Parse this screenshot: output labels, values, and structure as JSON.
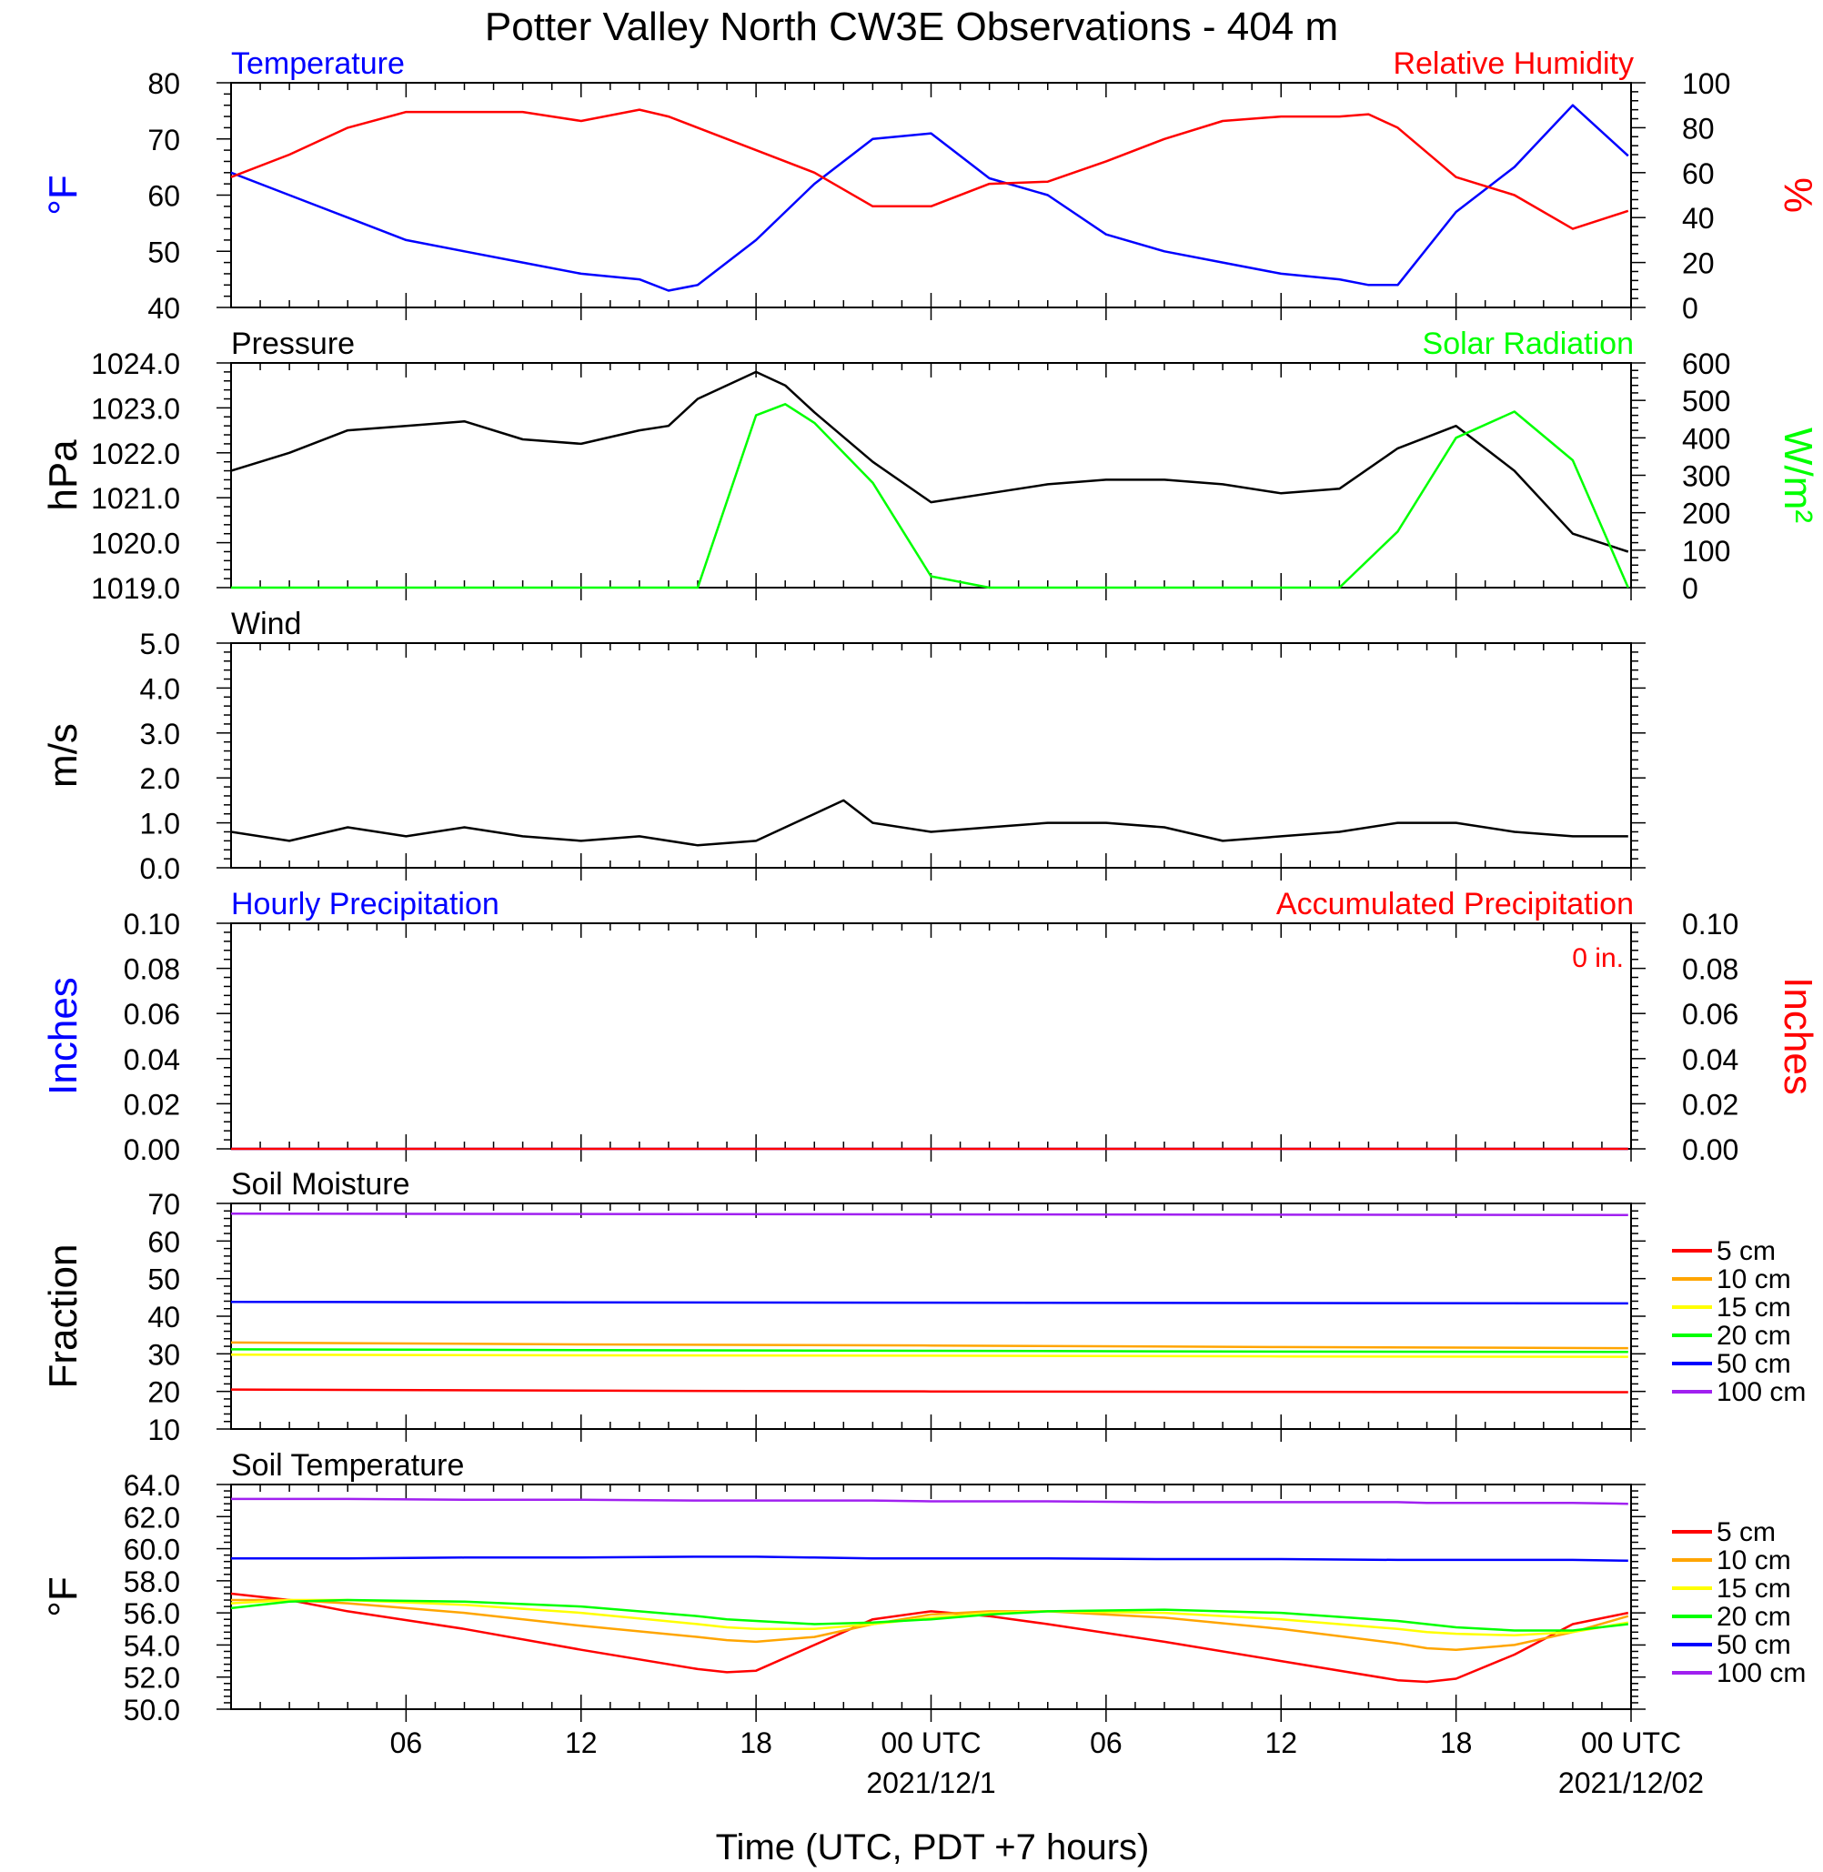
{
  "title": "Potter Valley North CW3E Observations - 404 m",
  "xlabel": "Time (UTC, PDT +7 hours)",
  "x_ticks": [
    "06",
    "12",
    "18",
    "00 UTC",
    "06",
    "12",
    "18",
    "00 UTC"
  ],
  "x_dates": [
    "2021/12/1",
    "2021/12/02"
  ],
  "colors": {
    "temperature": "#0000ff",
    "humidity": "#ff0000",
    "pressure": "#000000",
    "solar": "#00ff00",
    "wind": "#000000",
    "wind_barb": "#ff0000"
  },
  "chart_data": [
    {
      "type": "line",
      "title_left": "Temperature",
      "title_right": "Relative Humidity",
      "ylabel_left": "°F",
      "ylabel_right": "%",
      "ylim_left": [
        40,
        80
      ],
      "ylim_right": [
        0,
        100
      ],
      "yticks_left": [
        "80",
        "70",
        "60",
        "50",
        "40"
      ],
      "yticks_right": [
        "100",
        "80",
        "60",
        "40",
        "20",
        "0"
      ],
      "x_hours": [
        0,
        2,
        4,
        6,
        8,
        10,
        12,
        14,
        15,
        16,
        18,
        20,
        22,
        24,
        26,
        28,
        30,
        32,
        34,
        36,
        38,
        39,
        40,
        42,
        44,
        46,
        47.9
      ],
      "series": [
        {
          "name": "Temperature",
          "axis": "left",
          "values": [
            64,
            60,
            56,
            52,
            50,
            48,
            46,
            45,
            43,
            44,
            52,
            62,
            70,
            71,
            63,
            60,
            53,
            50,
            48,
            46,
            45,
            44,
            44,
            57,
            65,
            76,
            67
          ]
        },
        {
          "name": "Relative Humidity",
          "axis": "right",
          "values": [
            58,
            68,
            80,
            87,
            87,
            87,
            83,
            88,
            85,
            80,
            70,
            60,
            45,
            45,
            55,
            56,
            65,
            75,
            83,
            85,
            85,
            86,
            80,
            58,
            50,
            35,
            43
          ]
        }
      ]
    },
    {
      "type": "line",
      "title_left": "Pressure",
      "title_right": "Solar Radiation",
      "ylabel_left": "hPa",
      "ylabel_right": "W/m²",
      "ylim_left": [
        1019.0,
        1024.0
      ],
      "ylim_right": [
        0,
        600
      ],
      "yticks_left": [
        "1024.0",
        "1023.0",
        "1022.0",
        "1021.0",
        "1020.0",
        "1019.0"
      ],
      "yticks_right": [
        "600",
        "500",
        "400",
        "300",
        "200",
        "100",
        "0"
      ],
      "x_hours": [
        0,
        2,
        4,
        6,
        8,
        10,
        12,
        14,
        15,
        16,
        18,
        19,
        20,
        22,
        24,
        26,
        28,
        30,
        32,
        34,
        36,
        38,
        40,
        42,
        44,
        46,
        47.9
      ],
      "series": [
        {
          "name": "Pressure",
          "axis": "left",
          "values": [
            1021.6,
            1022.0,
            1022.5,
            1022.6,
            1022.7,
            1022.3,
            1022.2,
            1022.5,
            1022.6,
            1023.2,
            1023.8,
            1023.5,
            1022.9,
            1021.8,
            1020.9,
            1021.1,
            1021.3,
            1021.4,
            1021.4,
            1021.3,
            1021.1,
            1021.2,
            1022.1,
            1022.6,
            1021.6,
            1020.2,
            1019.8
          ]
        },
        {
          "name": "Solar Radiation",
          "axis": "right",
          "values": [
            0,
            0,
            0,
            0,
            0,
            0,
            0,
            0,
            0,
            0,
            460,
            490,
            440,
            280,
            30,
            0,
            0,
            0,
            0,
            0,
            0,
            0,
            150,
            400,
            470,
            340,
            0
          ]
        }
      ]
    },
    {
      "type": "line",
      "title_left": "Wind",
      "ylabel_left": "m/s",
      "ylim_left": [
        0.0,
        5.0
      ],
      "yticks_left": [
        "5.0",
        "4.0",
        "3.0",
        "2.0",
        "1.0",
        "0.0"
      ],
      "x_hours": [
        0,
        2,
        4,
        6,
        8,
        10,
        12,
        14,
        16,
        18,
        20,
        21,
        22,
        24,
        26,
        28,
        30,
        32,
        34,
        36,
        38,
        40,
        42,
        44,
        46,
        47.9
      ],
      "series": [
        {
          "name": "Wind",
          "axis": "left",
          "values": [
            0.8,
            0.6,
            0.9,
            0.7,
            0.9,
            0.7,
            0.6,
            0.7,
            0.5,
            0.6,
            1.2,
            1.5,
            1.0,
            0.8,
            0.9,
            1.0,
            1.0,
            0.9,
            0.6,
            0.7,
            0.8,
            1.0,
            1.0,
            0.8,
            0.7,
            0.7
          ]
        }
      ]
    },
    {
      "type": "line",
      "title_left": "Hourly Precipitation",
      "title_right": "Accumulated Precipitation",
      "annotation": "0 in.",
      "ylabel_left": "Inches",
      "ylabel_right": "Inches",
      "ylim_left": [
        0.0,
        0.1
      ],
      "ylim_right": [
        0.0,
        0.1
      ],
      "yticks_left": [
        "0.10",
        "0.08",
        "0.06",
        "0.04",
        "0.02",
        "0.00"
      ],
      "yticks_right": [
        "0.10",
        "0.08",
        "0.06",
        "0.04",
        "0.02",
        "0.00"
      ],
      "x_hours": [
        0,
        47.9
      ],
      "series": [
        {
          "name": "Hourly Precipitation",
          "axis": "left",
          "values": [
            0,
            0
          ]
        },
        {
          "name": "Accumulated Precipitation",
          "axis": "right",
          "values": [
            0,
            0
          ]
        }
      ]
    },
    {
      "type": "line",
      "title_left": "Soil Moisture",
      "ylabel_left": "Fraction",
      "ylim_left": [
        10,
        70
      ],
      "yticks_left": [
        "70",
        "60",
        "50",
        "40",
        "30",
        "20",
        "10"
      ],
      "legend": "right",
      "x_hours": [
        0,
        12,
        24,
        36,
        47.9
      ],
      "series": [
        {
          "name": "5 cm",
          "color": "#ff0000",
          "values": [
            20.5,
            20.2,
            20.0,
            19.9,
            19.8
          ]
        },
        {
          "name": "10 cm",
          "color": "#ffa500",
          "values": [
            33.0,
            32.5,
            32.2,
            31.8,
            31.5
          ]
        },
        {
          "name": "15 cm",
          "color": "#ffff00",
          "values": [
            29.8,
            29.6,
            29.5,
            29.3,
            29.2
          ]
        },
        {
          "name": "20 cm",
          "color": "#00ff00",
          "values": [
            31.2,
            31.0,
            30.8,
            30.6,
            30.5
          ]
        },
        {
          "name": "50 cm",
          "color": "#0000ff",
          "values": [
            43.8,
            43.7,
            43.6,
            43.5,
            43.4
          ]
        },
        {
          "name": "100 cm",
          "color": "#a020f0",
          "values": [
            67.3,
            67.2,
            67.1,
            67.0,
            66.9
          ]
        }
      ]
    },
    {
      "type": "line",
      "title_left": "Soil Temperature",
      "ylabel_left": "°F",
      "ylim_left": [
        50.0,
        64.0
      ],
      "yticks_left": [
        "64.0",
        "62.0",
        "60.0",
        "58.0",
        "56.0",
        "54.0",
        "52.0",
        "50.0"
      ],
      "legend": "right",
      "x_hours": [
        0,
        2,
        4,
        8,
        12,
        16,
        17,
        18,
        20,
        22,
        24,
        26,
        28,
        32,
        36,
        40,
        41,
        42,
        44,
        46,
        47.9
      ],
      "series": [
        {
          "name": "5 cm",
          "color": "#ff0000",
          "values": [
            57.2,
            56.8,
            56.1,
            55.0,
            53.7,
            52.5,
            52.3,
            52.4,
            54.0,
            55.6,
            56.1,
            55.8,
            55.3,
            54.2,
            53.0,
            51.8,
            51.7,
            51.9,
            53.4,
            55.3,
            56.0
          ]
        },
        {
          "name": "10 cm",
          "color": "#ffa500",
          "values": [
            56.8,
            56.8,
            56.6,
            56.0,
            55.2,
            54.5,
            54.3,
            54.2,
            54.5,
            55.3,
            55.9,
            56.1,
            56.1,
            55.7,
            55.0,
            54.1,
            53.8,
            53.7,
            54.0,
            54.8,
            55.8
          ]
        },
        {
          "name": "15 cm",
          "color": "#ffff00",
          "values": [
            56.6,
            56.8,
            56.8,
            56.5,
            56.0,
            55.3,
            55.1,
            55.0,
            55.0,
            55.3,
            55.7,
            56.0,
            56.1,
            56.0,
            55.6,
            55.0,
            54.8,
            54.7,
            54.6,
            54.8,
            55.4
          ]
        },
        {
          "name": "20 cm",
          "color": "#00ff00",
          "values": [
            56.3,
            56.7,
            56.8,
            56.7,
            56.4,
            55.8,
            55.6,
            55.5,
            55.3,
            55.4,
            55.6,
            55.9,
            56.1,
            56.2,
            56.0,
            55.5,
            55.3,
            55.1,
            54.9,
            54.9,
            55.3
          ]
        },
        {
          "name": "50 cm",
          "color": "#0000ff",
          "values": [
            59.4,
            59.4,
            59.4,
            59.45,
            59.45,
            59.5,
            59.5,
            59.5,
            59.45,
            59.4,
            59.4,
            59.4,
            59.4,
            59.35,
            59.35,
            59.3,
            59.3,
            59.3,
            59.3,
            59.3,
            59.25
          ]
        },
        {
          "name": "100 cm",
          "color": "#a020f0",
          "values": [
            63.1,
            63.1,
            63.1,
            63.05,
            63.05,
            63.0,
            63.0,
            63.0,
            63.0,
            63.0,
            62.95,
            62.95,
            62.95,
            62.9,
            62.9,
            62.9,
            62.85,
            62.85,
            62.85,
            62.85,
            62.8
          ]
        }
      ]
    }
  ]
}
